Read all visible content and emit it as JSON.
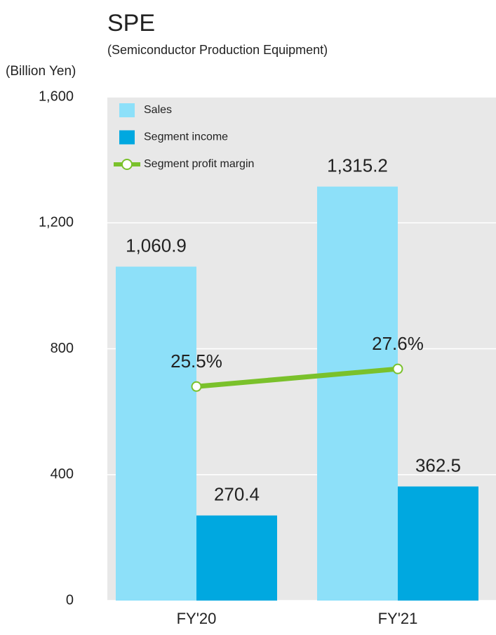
{
  "chart_data": {
    "type": "bar",
    "title": "SPE",
    "subtitle": "(Semiconductor Production Equipment)",
    "y_label": "(Billion Yen)",
    "categories": [
      "FY'20",
      "FY'21"
    ],
    "series": [
      {
        "name": "Sales",
        "color": "#8de0f9",
        "values": [
          1060.9,
          1315.2
        ],
        "value_labels": [
          "1,060.9",
          "1,315.2"
        ]
      },
      {
        "name": "Segment income",
        "color": "#00a8e0",
        "values": [
          270.4,
          362.5
        ]
      },
      {
        "name": "Segment profit margin",
        "color": "#7ac12b",
        "type": "line",
        "axis": "y2",
        "values": [
          25.5,
          27.6
        ],
        "value_labels": [
          "25.5%",
          "27.6%"
        ]
      }
    ],
    "ylim": [
      0,
      1600
    ],
    "yticks": [
      0,
      400,
      800,
      {
        "value": 1200,
        "label": "1,200"
      },
      {
        "value": 1600,
        "label": "1,600"
      }
    ],
    "y2lim": [
      0,
      60
    ],
    "grid": true,
    "legend": "upper left"
  }
}
